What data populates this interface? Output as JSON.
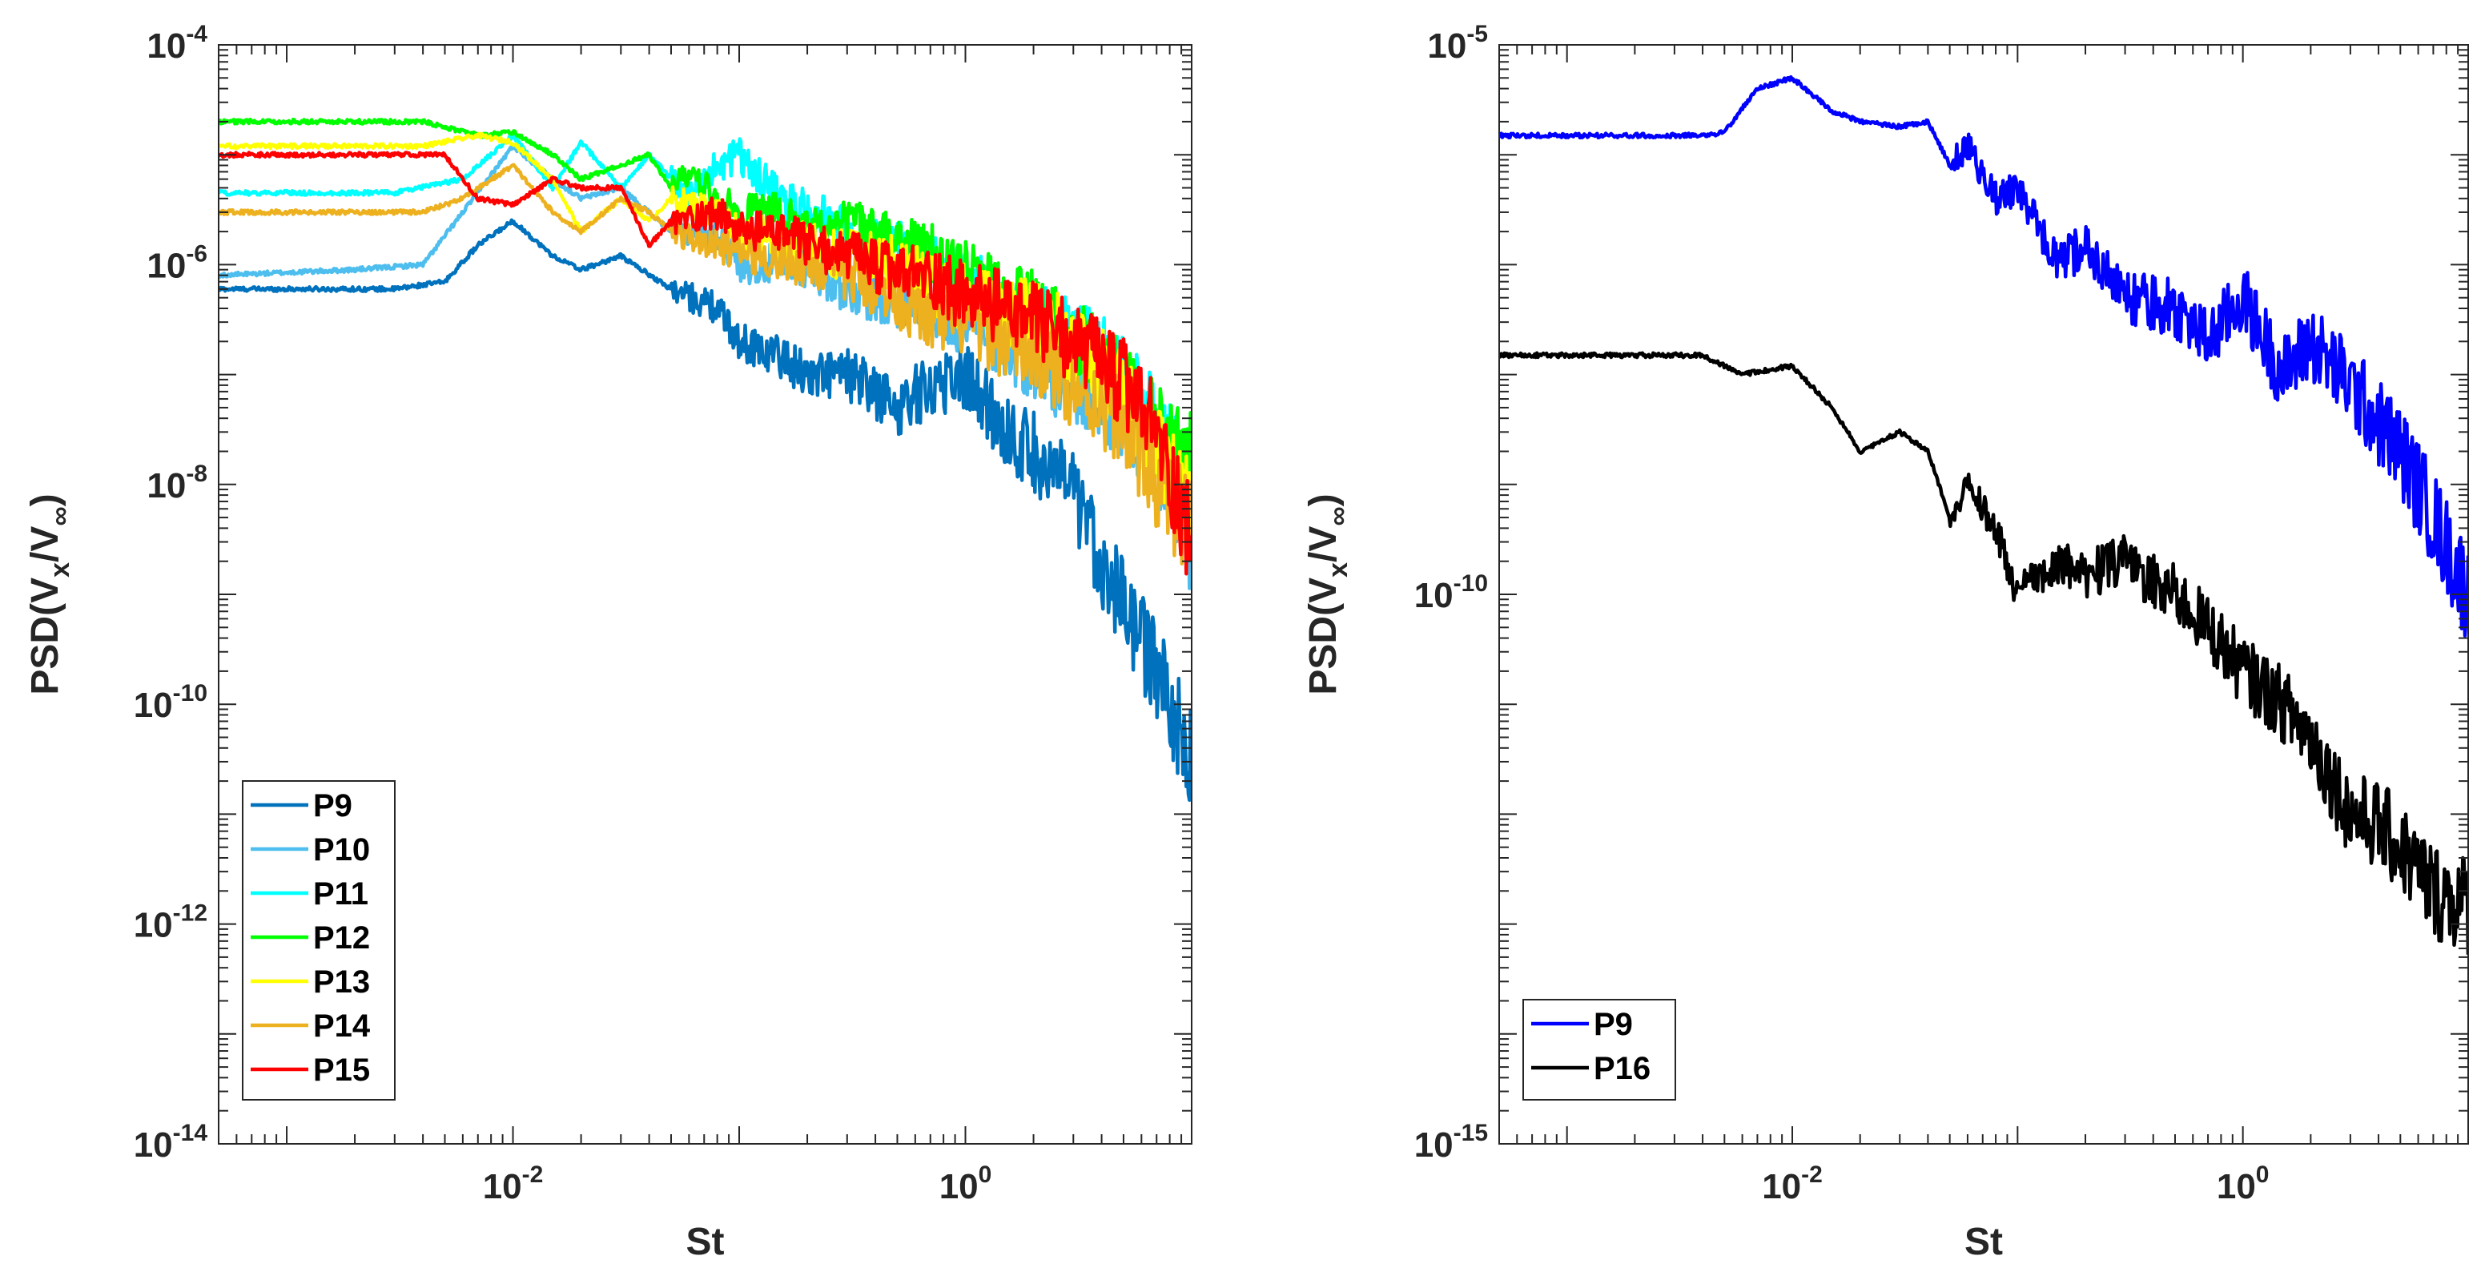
{
  "chart_data": [
    {
      "type": "line",
      "xscale": "log",
      "yscale": "log",
      "xlim": [
        0.0005,
        10
      ],
      "ylim": [
        1e-14,
        0.0001
      ],
      "xlabel": "St",
      "ylabel": {
        "base": "PSD(V",
        "sub1": "x",
        "mid": "/V",
        "sub2": "∞",
        "end": ")"
      },
      "xticks": [
        {
          "value": 0.01,
          "base": "10",
          "exp": "-2"
        },
        {
          "value": 1,
          "base": "10",
          "exp": "0"
        }
      ],
      "yticks": [
        {
          "value": 0.0001,
          "base": "10",
          "exp": "-4"
        },
        {
          "value": 1e-06,
          "base": "10",
          "exp": "-6"
        },
        {
          "value": 1e-08,
          "base": "10",
          "exp": "-8"
        },
        {
          "value": 1e-10,
          "base": "10",
          "exp": "-10"
        },
        {
          "value": 1e-12,
          "base": "10",
          "exp": "-12"
        },
        {
          "value": 1e-14,
          "base": "10",
          "exp": "-14"
        }
      ],
      "legend_position": "bottom-left",
      "series": [
        {
          "name": "P9",
          "color": "#0072BD",
          "points": [
            [
              0.0005,
              6e-07
            ],
            [
              0.003,
              6e-07
            ],
            [
              0.005,
              7e-07
            ],
            [
              0.007,
              1.5e-06
            ],
            [
              0.01,
              2.5e-06
            ],
            [
              0.015,
              1.2e-06
            ],
            [
              0.02,
              9e-07
            ],
            [
              0.03,
              1.2e-06
            ],
            [
              0.05,
              6e-07
            ],
            [
              0.08,
              4e-07
            ],
            [
              0.1,
              2e-07
            ],
            [
              0.15,
              1.5e-07
            ],
            [
              0.2,
              1e-07
            ],
            [
              0.3,
              1e-07
            ],
            [
              0.5,
              5e-08
            ],
            [
              0.7,
              8e-08
            ],
            [
              1,
              1e-07
            ],
            [
              1.5,
              3e-08
            ],
            [
              2,
              2e-08
            ],
            [
              3,
              8e-09
            ],
            [
              4,
              2e-09
            ],
            [
              5,
              8e-10
            ],
            [
              7,
              2e-10
            ],
            [
              10,
              3e-11
            ]
          ]
        },
        {
          "name": "P10",
          "color": "#4DBEEE",
          "points": [
            [
              0.0005,
              8e-07
            ],
            [
              0.002,
              9e-07
            ],
            [
              0.004,
              1e-06
            ],
            [
              0.006,
              3e-06
            ],
            [
              0.01,
              1.2e-05
            ],
            [
              0.015,
              6e-06
            ],
            [
              0.02,
              4e-06
            ],
            [
              0.03,
              5e-06
            ],
            [
              0.05,
              2e-06
            ],
            [
              0.08,
              2e-06
            ],
            [
              0.1,
              1e-06
            ],
            [
              0.2,
              1e-06
            ],
            [
              0.3,
              6e-07
            ],
            [
              0.5,
              5e-07
            ],
            [
              0.7,
              4e-07
            ],
            [
              1,
              3e-07
            ],
            [
              1.5,
              2e-07
            ],
            [
              2,
              1.3e-07
            ],
            [
              3,
              8e-08
            ],
            [
              5,
              4e-08
            ],
            [
              7,
              1.5e-08
            ],
            [
              10,
              3e-09
            ]
          ]
        },
        {
          "name": "P11",
          "color": "#00FFFF",
          "points": [
            [
              0.0005,
              4.5e-06
            ],
            [
              0.003,
              4.5e-06
            ],
            [
              0.006,
              6e-06
            ],
            [
              0.01,
              1.5e-05
            ],
            [
              0.015,
              5e-06
            ],
            [
              0.02,
              1.3e-05
            ],
            [
              0.03,
              5e-06
            ],
            [
              0.04,
              1e-05
            ],
            [
              0.06,
              4e-06
            ],
            [
              0.08,
              8e-06
            ],
            [
              0.1,
              1e-05
            ],
            [
              0.15,
              4e-06
            ],
            [
              0.2,
              3e-06
            ],
            [
              0.3,
              2e-06
            ],
            [
              0.5,
              1.5e-06
            ],
            [
              0.7,
              1e-06
            ],
            [
              1,
              7e-07
            ],
            [
              1.5,
              4e-07
            ],
            [
              2,
              3e-07
            ],
            [
              3,
              2e-07
            ],
            [
              5,
              1e-07
            ],
            [
              7,
              3e-08
            ],
            [
              10,
              1e-08
            ]
          ]
        },
        {
          "name": "P12",
          "color": "#00FF00",
          "points": [
            [
              0.0005,
              2e-05
            ],
            [
              0.004,
              2e-05
            ],
            [
              0.007,
              1.5e-05
            ],
            [
              0.01,
              1.6e-05
            ],
            [
              0.015,
              1e-05
            ],
            [
              0.02,
              6e-06
            ],
            [
              0.03,
              8e-06
            ],
            [
              0.04,
              1e-05
            ],
            [
              0.05,
              5e-06
            ],
            [
              0.06,
              7e-06
            ],
            [
              0.08,
              4e-06
            ],
            [
              0.1,
              3e-06
            ],
            [
              0.15,
              3e-06
            ],
            [
              0.2,
              2e-06
            ],
            [
              0.3,
              2.5e-06
            ],
            [
              0.5,
              1.5e-06
            ],
            [
              0.7,
              1.2e-06
            ],
            [
              1,
              8e-07
            ],
            [
              1.5,
              5e-07
            ],
            [
              2,
              4e-07
            ],
            [
              3,
              2e-07
            ],
            [
              5,
              8e-08
            ],
            [
              7,
              3e-08
            ],
            [
              10,
              2e-08
            ]
          ]
        },
        {
          "name": "P13",
          "color": "#FFFF00",
          "points": [
            [
              0.0005,
              1.2e-05
            ],
            [
              0.004,
              1.2e-05
            ],
            [
              0.007,
              1.5e-05
            ],
            [
              0.01,
              1.3e-05
            ],
            [
              0.015,
              6e-06
            ],
            [
              0.02,
              2e-06
            ],
            [
              0.03,
              4e-06
            ],
            [
              0.04,
              2.5e-06
            ],
            [
              0.05,
              4e-06
            ],
            [
              0.08,
              3e-06
            ],
            [
              0.1,
              2e-06
            ],
            [
              0.2,
              1.5e-06
            ],
            [
              0.3,
              1.2e-06
            ],
            [
              0.5,
              1e-06
            ],
            [
              0.7,
              7e-07
            ],
            [
              1,
              5e-07
            ],
            [
              1.5,
              4e-07
            ],
            [
              2,
              3e-07
            ],
            [
              3,
              2e-07
            ],
            [
              5,
              6e-08
            ],
            [
              7,
              2e-08
            ],
            [
              10,
              5e-09
            ]
          ]
        },
        {
          "name": "P14",
          "color": "#EDB120",
          "points": [
            [
              0.0005,
              3e-06
            ],
            [
              0.004,
              3e-06
            ],
            [
              0.006,
              4e-06
            ],
            [
              0.01,
              8e-06
            ],
            [
              0.015,
              3e-06
            ],
            [
              0.02,
              2e-06
            ],
            [
              0.03,
              4e-06
            ],
            [
              0.04,
              3e-06
            ],
            [
              0.05,
              2e-06
            ],
            [
              0.08,
              1.5e-06
            ],
            [
              0.1,
              1.3e-06
            ],
            [
              0.2,
              1e-06
            ],
            [
              0.3,
              8e-07
            ],
            [
              0.5,
              5e-07
            ],
            [
              0.7,
              3e-07
            ],
            [
              1,
              3e-07
            ],
            [
              1.5,
              2e-07
            ],
            [
              2,
              1.5e-07
            ],
            [
              3,
              8e-08
            ],
            [
              5,
              4e-08
            ],
            [
              7,
              1e-08
            ],
            [
              10,
              4e-09
            ]
          ]
        },
        {
          "name": "P15",
          "color": "#FF0000",
          "points": [
            [
              0.0005,
              1e-05
            ],
            [
              0.004,
              1e-05
            ],
            [
              0.005,
              1e-05
            ],
            [
              0.007,
              4e-06
            ],
            [
              0.01,
              3.5e-06
            ],
            [
              0.015,
              6e-06
            ],
            [
              0.02,
              5e-06
            ],
            [
              0.03,
              5e-06
            ],
            [
              0.04,
              1.5e-06
            ],
            [
              0.05,
              2.5e-06
            ],
            [
              0.08,
              3e-06
            ],
            [
              0.1,
              2e-06
            ],
            [
              0.15,
              2e-06
            ],
            [
              0.2,
              1.5e-06
            ],
            [
              0.3,
              1.2e-06
            ],
            [
              0.5,
              8e-07
            ],
            [
              0.7,
              8e-07
            ],
            [
              1,
              5e-07
            ],
            [
              1.5,
              4e-07
            ],
            [
              2,
              3e-07
            ],
            [
              3,
              2e-07
            ],
            [
              5,
              8e-08
            ],
            [
              7,
              3e-08
            ],
            [
              10,
              3e-09
            ]
          ]
        }
      ]
    },
    {
      "type": "line",
      "xscale": "log",
      "yscale": "log",
      "xlim": [
        0.0005,
        10
      ],
      "ylim": [
        1e-15,
        1e-05
      ],
      "xlabel": "St",
      "ylabel": {
        "base": "PSD(V",
        "sub1": "x",
        "mid": "/V",
        "sub2": "∞",
        "end": ")"
      },
      "xticks": [
        {
          "value": 0.01,
          "base": "10",
          "exp": "-2"
        },
        {
          "value": 1,
          "base": "10",
          "exp": "0"
        }
      ],
      "yticks": [
        {
          "value": 1e-05,
          "base": "10",
          "exp": "-5"
        },
        {
          "value": 1e-10,
          "base": "10",
          "exp": "-10"
        },
        {
          "value": 1e-15,
          "base": "10",
          "exp": "-15"
        }
      ],
      "legend_position": "bottom-left",
      "series": [
        {
          "name": "P9",
          "color": "#0000FF",
          "points": [
            [
              0.0005,
              1.5e-06
            ],
            [
              0.004,
              1.5e-06
            ],
            [
              0.005,
              1.6e-06
            ],
            [
              0.007,
              4e-06
            ],
            [
              0.01,
              5e-06
            ],
            [
              0.015,
              2.5e-06
            ],
            [
              0.02,
              2e-06
            ],
            [
              0.03,
              1.8e-06
            ],
            [
              0.04,
              2e-06
            ],
            [
              0.05,
              8e-07
            ],
            [
              0.06,
              1.2e-06
            ],
            [
              0.08,
              4e-07
            ],
            [
              0.1,
              5e-07
            ],
            [
              0.15,
              1e-07
            ],
            [
              0.2,
              1.5e-07
            ],
            [
              0.3,
              5e-08
            ],
            [
              0.5,
              4e-08
            ],
            [
              0.7,
              2e-08
            ],
            [
              1,
              5e-08
            ],
            [
              1.5,
              1e-08
            ],
            [
              2,
              2e-08
            ],
            [
              3,
              8e-09
            ],
            [
              5,
              2e-09
            ],
            [
              7,
              5e-10
            ],
            [
              10,
              1e-10
            ]
          ]
        },
        {
          "name": "P16",
          "color": "#000000",
          "points": [
            [
              0.0005,
              1.5e-08
            ],
            [
              0.004,
              1.5e-08
            ],
            [
              0.006,
              1e-08
            ],
            [
              0.01,
              1.2e-08
            ],
            [
              0.015,
              5e-09
            ],
            [
              0.02,
              2e-09
            ],
            [
              0.03,
              3e-09
            ],
            [
              0.04,
              2e-09
            ],
            [
              0.05,
              5e-10
            ],
            [
              0.06,
              1e-09
            ],
            [
              0.08,
              4e-10
            ],
            [
              0.1,
              1e-10
            ],
            [
              0.15,
              2e-10
            ],
            [
              0.2,
              1.5e-10
            ],
            [
              0.3,
              2e-10
            ],
            [
              0.5,
              1e-10
            ],
            [
              0.7,
              5e-11
            ],
            [
              1,
              2e-11
            ],
            [
              1.5,
              1e-11
            ],
            [
              2,
              5e-12
            ],
            [
              3,
              1e-12
            ],
            [
              4,
              8e-13
            ],
            [
              5,
              5e-13
            ],
            [
              7,
              2e-13
            ],
            [
              10,
              1.5e-13
            ]
          ]
        }
      ]
    }
  ]
}
